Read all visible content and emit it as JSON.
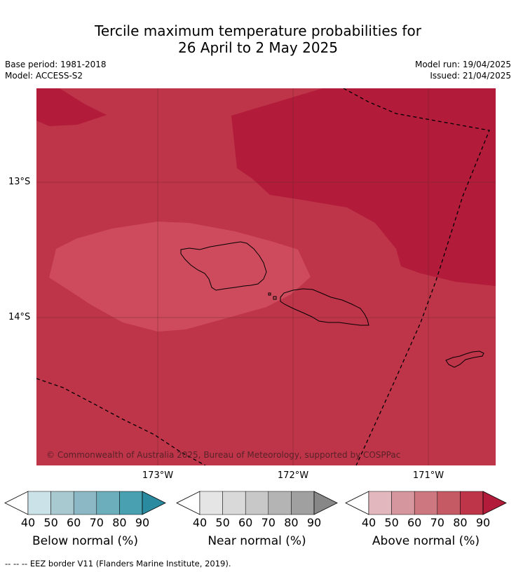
{
  "title": {
    "line1": "Tercile maximum temperature probabilities for",
    "line2": "26 April to 2 May 2025"
  },
  "meta": {
    "base_period": "Base period: 1981-2018",
    "model": "Model: ACCESS-S2",
    "model_run": "Model run: 19/04/2025",
    "issued": "Issued: 21/04/2025"
  },
  "map": {
    "latitude_labels": [
      "13°S",
      "14°S"
    ],
    "longitude_labels": [
      "173°W",
      "172°W",
      "171°W"
    ],
    "copyright": "© Commonwealth of Australia 2025, Bureau of Meteorology, supported by COSPPac",
    "shading_colors": {
      "above_50_60": "#cd4b5c",
      "above_70_80": "#be3449",
      "above_80_90": "#b21c3a"
    },
    "line_colors": {
      "coast": "#000000",
      "eez": "#000000",
      "grid": "#6a2a30"
    }
  },
  "colorbars": [
    {
      "label": "Below normal (%)",
      "ticks": [
        "40",
        "50",
        "60",
        "70",
        "80",
        "90"
      ],
      "colors": [
        "#ffffff",
        "#cae2e8",
        "#a8c9cf",
        "#8bb8c4",
        "#6daebd",
        "#49a0b1",
        "#2a8ba0"
      ]
    },
    {
      "label": "Near normal (%)",
      "ticks": [
        "40",
        "50",
        "60",
        "70",
        "80",
        "90"
      ],
      "colors": [
        "#ffffff",
        "#e5e5e5",
        "#d9d9d9",
        "#c8c8c8",
        "#b4b4b4",
        "#a0a0a0",
        "#878787"
      ]
    },
    {
      "label": "Above normal (%)",
      "ticks": [
        "40",
        "50",
        "60",
        "70",
        "80",
        "90"
      ],
      "colors": [
        "#ffffff",
        "#e2b8be",
        "#d6969e",
        "#cd7880",
        "#c55a65",
        "#be3449",
        "#b21c3a"
      ]
    }
  ],
  "footer": "-- -- -- EEZ border V11 (Flanders Marine Institute, 2019)."
}
